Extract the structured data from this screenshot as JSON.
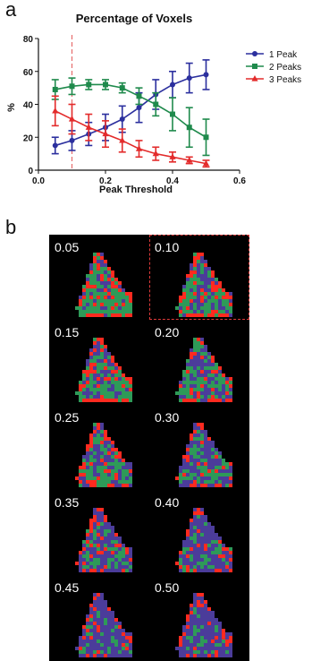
{
  "panels": {
    "a": "a",
    "b": "b"
  },
  "chart_data": {
    "type": "line",
    "title": "Percentage of Voxels",
    "xlabel": "Peak Threshold",
    "ylabel": "%",
    "xlim": [
      0.0,
      0.6
    ],
    "ylim": [
      0,
      80
    ],
    "xticks": [
      "0.0",
      "0.2",
      "0.4",
      "0.6"
    ],
    "yticks": [
      "0",
      "20",
      "40",
      "60",
      "80"
    ],
    "grid": false,
    "legend": "top-right",
    "reference_line_x": 0.1,
    "x": [
      0.05,
      0.1,
      0.15,
      0.2,
      0.25,
      0.3,
      0.35,
      0.4,
      0.45,
      0.5
    ],
    "series": [
      {
        "name": "1 Peak",
        "color": "#2b2f9e",
        "marker": "circle",
        "values": [
          15,
          18,
          22,
          26,
          31,
          38,
          46,
          52,
          56,
          58
        ],
        "errors": [
          5,
          6,
          7,
          8,
          8,
          9,
          9,
          8,
          9,
          9
        ]
      },
      {
        "name": "2 Peaks",
        "color": "#1f8a4c",
        "marker": "square",
        "values": [
          49,
          51,
          52,
          52,
          50,
          45,
          40,
          34,
          26,
          20
        ],
        "errors": [
          6,
          5,
          3,
          3,
          3,
          5,
          7,
          10,
          12,
          11
        ]
      },
      {
        "name": "3 Peaks",
        "color": "#e32b2b",
        "marker": "triangle",
        "values": [
          36,
          31,
          26,
          22,
          18,
          13,
          10,
          8,
          6,
          4
        ],
        "errors": [
          9,
          9,
          8,
          8,
          7,
          5,
          4,
          3,
          2,
          2
        ]
      }
    ]
  },
  "thresholds": [
    "0.05",
    "0.10",
    "0.15",
    "0.20",
    "0.25",
    "0.30",
    "0.35",
    "0.40",
    "0.45",
    "0.50"
  ],
  "highlighted": "0.10",
  "map_colors": {
    "one": "#4b3c9a",
    "two": "#2e9a58",
    "three": "#ff2a1f"
  }
}
